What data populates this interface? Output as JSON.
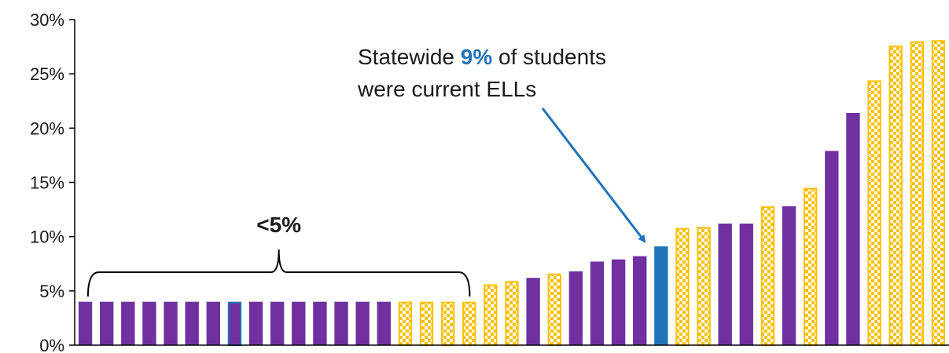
{
  "chart_data": {
    "type": "bar",
    "title": "",
    "xlabel": "",
    "ylabel": "",
    "ylim": [
      0,
      30
    ],
    "yticks": [
      0,
      5,
      10,
      15,
      20,
      25,
      30
    ],
    "ytick_labels": [
      "0%",
      "5%",
      "10%",
      "15%",
      "20%",
      "25%",
      "30%"
    ],
    "grid": false,
    "colors": {
      "solid": "#7030a0",
      "checkered": "#ffc000",
      "highlight": "#1f73b8",
      "axis": "#000000"
    },
    "bars": [
      {
        "value": 4.0,
        "style": "solid"
      },
      {
        "value": 4.0,
        "style": "solid"
      },
      {
        "value": 4.0,
        "style": "solid"
      },
      {
        "value": 4.0,
        "style": "solid"
      },
      {
        "value": 4.0,
        "style": "solid"
      },
      {
        "value": 4.0,
        "style": "solid"
      },
      {
        "value": 4.0,
        "style": "solid"
      },
      {
        "value": 4.0,
        "style": "solid",
        "outlined": true
      },
      {
        "value": 4.0,
        "style": "solid"
      },
      {
        "value": 4.0,
        "style": "solid"
      },
      {
        "value": 4.0,
        "style": "solid"
      },
      {
        "value": 4.0,
        "style": "solid"
      },
      {
        "value": 4.0,
        "style": "solid"
      },
      {
        "value": 4.0,
        "style": "solid"
      },
      {
        "value": 4.0,
        "style": "solid"
      },
      {
        "value": 4.0,
        "style": "checkered"
      },
      {
        "value": 4.0,
        "style": "checkered"
      },
      {
        "value": 4.0,
        "style": "checkered"
      },
      {
        "value": 4.0,
        "style": "checkered"
      },
      {
        "value": 5.6,
        "style": "checkered"
      },
      {
        "value": 5.9,
        "style": "checkered"
      },
      {
        "value": 6.2,
        "style": "solid"
      },
      {
        "value": 6.6,
        "style": "checkered"
      },
      {
        "value": 6.8,
        "style": "solid"
      },
      {
        "value": 7.7,
        "style": "solid"
      },
      {
        "value": 7.9,
        "style": "solid"
      },
      {
        "value": 8.2,
        "style": "solid"
      },
      {
        "value": 9.1,
        "style": "highlight"
      },
      {
        "value": 10.8,
        "style": "checkered"
      },
      {
        "value": 10.9,
        "style": "checkered"
      },
      {
        "value": 11.2,
        "style": "solid"
      },
      {
        "value": 11.2,
        "style": "solid"
      },
      {
        "value": 12.8,
        "style": "checkered"
      },
      {
        "value": 12.8,
        "style": "solid"
      },
      {
        "value": 14.5,
        "style": "checkered"
      },
      {
        "value": 17.9,
        "style": "solid"
      },
      {
        "value": 21.4,
        "style": "solid"
      },
      {
        "value": 24.4,
        "style": "checkered"
      },
      {
        "value": 27.6,
        "style": "checkered"
      },
      {
        "value": 28.0,
        "style": "checkered"
      },
      {
        "value": 28.1,
        "style": "checkered"
      }
    ],
    "annotations": {
      "statewide": {
        "line1_prefix": "Statewide ",
        "line1_highlight": "9%",
        "line1_suffix": " of students",
        "line2": "were current ELLs",
        "points_to_bar": 27
      },
      "bracket": {
        "label": "<5%",
        "from_bar": 0,
        "to_bar": 18
      }
    }
  }
}
